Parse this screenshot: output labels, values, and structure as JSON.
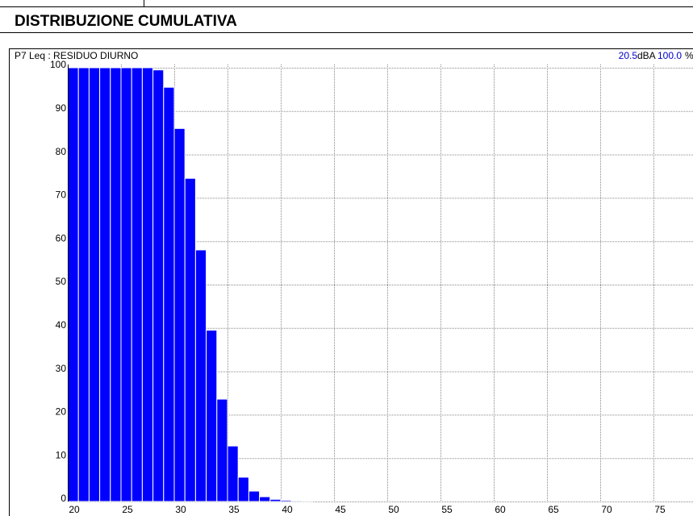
{
  "chart_data": {
    "type": "histogram",
    "title": "DISTRIBUZIONE CUMULATIVA",
    "subtitle": "P7  Leq : RESIDUO DIURNO",
    "header_value": "20.5",
    "header_unit": "dBA",
    "header_percent": "100.0",
    "header_percent_unit": "%",
    "bins": [
      20,
      21,
      22,
      23,
      24,
      25,
      26,
      27,
      28,
      29,
      30,
      31,
      32,
      33,
      34,
      35,
      36,
      37,
      38,
      39,
      40,
      41,
      42,
      43
    ],
    "values": [
      100,
      100,
      100,
      100,
      100,
      100,
      100,
      100,
      99.5,
      95.5,
      86,
      74.5,
      58,
      39.5,
      23.6,
      12.8,
      5.6,
      2.4,
      1.1,
      0.5,
      0.3,
      0.2,
      0.1
    ],
    "color": "#0000ff",
    "xlim": [
      20,
      80
    ],
    "xticks": [
      20,
      25,
      30,
      35,
      40,
      45,
      50,
      55,
      60,
      65,
      70,
      75,
      80
    ],
    "ylim": [
      0,
      100
    ],
    "yticks": [
      0,
      10,
      20,
      30,
      40,
      50,
      60,
      70,
      80,
      90,
      100
    ],
    "grid": true
  }
}
